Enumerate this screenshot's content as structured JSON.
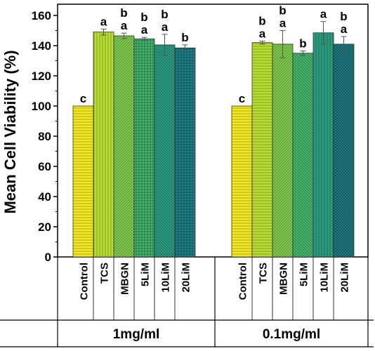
{
  "chart_data": {
    "type": "bar",
    "ylabel": "Mean Cell Viability (%)",
    "ylim": [
      0,
      160
    ],
    "yticks": [
      0,
      20,
      40,
      60,
      80,
      100,
      120,
      140,
      160
    ],
    "grid": false,
    "legend": "none",
    "groups": [
      {
        "name": "1mg/ml",
        "bars": [
          {
            "category": "Control",
            "value": 100,
            "error": 0,
            "letter": [
              "c"
            ],
            "color": "#f2e826",
            "pattern": "horizontal"
          },
          {
            "category": "TCS",
            "value": 149,
            "error": 2,
            "letter": [
              "a"
            ],
            "color": "#b9dd33",
            "pattern": "vertical"
          },
          {
            "category": "MBGN",
            "value": 146.5,
            "error": 1.8,
            "letter": [
              "b",
              "a"
            ],
            "color": "#7fc94d",
            "pattern": "diagonal"
          },
          {
            "category": "5LiM",
            "value": 144.5,
            "error": 1,
            "letter": [
              "b",
              "a"
            ],
            "color": "#44b36c",
            "pattern": "grid"
          },
          {
            "category": "10LiM",
            "value": 140.5,
            "error": 7,
            "letter": [
              "b",
              "a"
            ],
            "color": "#2a9a7e",
            "pattern": "backdiag"
          },
          {
            "category": "20LiM",
            "value": 138.5,
            "error": 2,
            "letter": [
              "b"
            ],
            "color": "#1f7f86",
            "pattern": "grid"
          }
        ]
      },
      {
        "name": "0.1mg/ml",
        "bars": [
          {
            "category": "Control",
            "value": 100,
            "error": 0,
            "letter": [
              "c"
            ],
            "color": "#f2e826",
            "pattern": "horizontal"
          },
          {
            "category": "TCS",
            "value": 142,
            "error": 1,
            "letter": [
              "b",
              "a"
            ],
            "color": "#b9dd33",
            "pattern": "horizontal"
          },
          {
            "category": "MBGN",
            "value": 141,
            "error": 9,
            "letter": [
              "b",
              "a"
            ],
            "color": "#7fc94d",
            "pattern": "diagonal"
          },
          {
            "category": "5LiM",
            "value": 135,
            "error": 1.5,
            "letter": [
              "b"
            ],
            "color": "#44b36c",
            "pattern": "backdiag"
          },
          {
            "category": "10LiM",
            "value": 148.5,
            "error": 7.5,
            "letter": [
              "a"
            ],
            "color": "#2a9a7e",
            "pattern": "vertical"
          },
          {
            "category": "20LiM",
            "value": 141,
            "error": 5,
            "letter": [
              "b",
              "a"
            ],
            "color": "#1f7f86",
            "pattern": "crosshatch"
          }
        ]
      }
    ]
  }
}
